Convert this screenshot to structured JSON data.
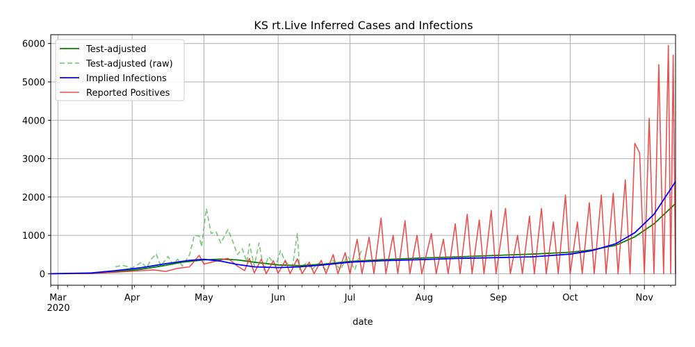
{
  "chart_data": {
    "type": "line",
    "title": "KS rt.Live Inferred Cases and Infections",
    "xlabel": "date",
    "ylabel": "",
    "x_ticks": [
      "Mar",
      "Apr",
      "May",
      "Jun",
      "Jul",
      "Aug",
      "Sep",
      "Oct",
      "Nov"
    ],
    "x_year_label": "2020",
    "y_ticks": [
      "0",
      "1000",
      "2000",
      "3000",
      "4000",
      "5000",
      "6000"
    ],
    "ylim": [
      -300,
      6230
    ],
    "xlim": [
      "2020-02-27",
      "2020-11-14"
    ],
    "grid": true,
    "legend_position": "upper-left",
    "colors": {
      "test_adjusted": "#008000",
      "test_adjusted_raw": "#5cb85c",
      "implied_infections": "#0000ff",
      "reported_positives": "#e8312f"
    },
    "series": [
      {
        "name": "Test-adjusted",
        "key": "test_adjusted",
        "style": "solid",
        "points": [
          [
            "2020-02-27",
            0
          ],
          [
            "2020-03-15",
            10
          ],
          [
            "2020-03-25",
            50
          ],
          [
            "2020-04-05",
            120
          ],
          [
            "2020-04-15",
            220
          ],
          [
            "2020-04-22",
            300
          ],
          [
            "2020-05-01",
            360
          ],
          [
            "2020-05-08",
            380
          ],
          [
            "2020-05-15",
            360
          ],
          [
            "2020-05-22",
            300
          ],
          [
            "2020-06-01",
            230
          ],
          [
            "2020-06-10",
            210
          ],
          [
            "2020-06-20",
            250
          ],
          [
            "2020-07-01",
            320
          ],
          [
            "2020-07-15",
            370
          ],
          [
            "2020-08-01",
            410
          ],
          [
            "2020-08-15",
            440
          ],
          [
            "2020-09-01",
            480
          ],
          [
            "2020-09-15",
            510
          ],
          [
            "2020-10-01",
            560
          ],
          [
            "2020-10-10",
            620
          ],
          [
            "2020-10-20",
            740
          ],
          [
            "2020-10-28",
            960
          ],
          [
            "2020-11-05",
            1300
          ],
          [
            "2020-11-14",
            1830
          ]
        ]
      },
      {
        "name": "Test-adjusted (raw)",
        "key": "test_adjusted_raw",
        "style": "dashed",
        "points": [
          [
            "2020-03-25",
            180
          ],
          [
            "2020-03-28",
            220
          ],
          [
            "2020-04-01",
            150
          ],
          [
            "2020-04-05",
            300
          ],
          [
            "2020-04-07",
            150
          ],
          [
            "2020-04-09",
            380
          ],
          [
            "2020-04-11",
            520
          ],
          [
            "2020-04-13",
            200
          ],
          [
            "2020-04-16",
            450
          ],
          [
            "2020-04-18",
            250
          ],
          [
            "2020-04-20",
            380
          ],
          [
            "2020-04-22",
            200
          ],
          [
            "2020-04-25",
            500
          ],
          [
            "2020-04-27",
            1000
          ],
          [
            "2020-04-29",
            980
          ],
          [
            "2020-04-30",
            700
          ],
          [
            "2020-05-02",
            1700
          ],
          [
            "2020-05-04",
            1050
          ],
          [
            "2020-05-06",
            1100
          ],
          [
            "2020-05-08",
            800
          ],
          [
            "2020-05-11",
            1150
          ],
          [
            "2020-05-13",
            850
          ],
          [
            "2020-05-15",
            500
          ],
          [
            "2020-05-17",
            650
          ],
          [
            "2020-05-19",
            300
          ],
          [
            "2020-05-20",
            780
          ],
          [
            "2020-05-22",
            200
          ],
          [
            "2020-05-24",
            800
          ],
          [
            "2020-05-26",
            100
          ],
          [
            "2020-05-28",
            450
          ],
          [
            "2020-05-31",
            200
          ],
          [
            "2020-06-02",
            600
          ],
          [
            "2020-06-04",
            300
          ],
          [
            "2020-06-07",
            200
          ],
          [
            "2020-06-09",
            1050
          ],
          [
            "2020-06-10",
            100
          ],
          [
            "2020-06-13",
            300
          ],
          [
            "2020-06-15",
            100
          ],
          [
            "2020-06-18",
            280
          ],
          [
            "2020-06-21",
            100
          ],
          [
            "2020-06-24",
            350
          ],
          [
            "2020-06-27",
            100
          ],
          [
            "2020-06-30",
            480
          ],
          [
            "2020-07-03",
            100
          ],
          [
            "2020-07-06",
            650
          ]
        ]
      },
      {
        "name": "Implied Infections",
        "key": "implied_infections",
        "style": "solid",
        "points": [
          [
            "2020-02-27",
            0
          ],
          [
            "2020-03-15",
            20
          ],
          [
            "2020-03-25",
            80
          ],
          [
            "2020-04-05",
            160
          ],
          [
            "2020-04-15",
            260
          ],
          [
            "2020-04-25",
            350
          ],
          [
            "2020-05-01",
            375
          ],
          [
            "2020-05-08",
            330
          ],
          [
            "2020-05-15",
            240
          ],
          [
            "2020-05-22",
            180
          ],
          [
            "2020-06-01",
            160
          ],
          [
            "2020-06-10",
            180
          ],
          [
            "2020-06-20",
            230
          ],
          [
            "2020-07-01",
            300
          ],
          [
            "2020-07-15",
            340
          ],
          [
            "2020-08-01",
            370
          ],
          [
            "2020-08-15",
            400
          ],
          [
            "2020-09-01",
            420
          ],
          [
            "2020-09-15",
            440
          ],
          [
            "2020-10-01",
            510
          ],
          [
            "2020-10-10",
            600
          ],
          [
            "2020-10-20",
            780
          ],
          [
            "2020-10-28",
            1070
          ],
          [
            "2020-11-05",
            1550
          ],
          [
            "2020-11-14",
            2400
          ]
        ]
      },
      {
        "name": "Reported Positives",
        "key": "reported_positives",
        "style": "solid",
        "points": [
          [
            "2020-02-27",
            0
          ],
          [
            "2020-03-15",
            5
          ],
          [
            "2020-03-25",
            40
          ],
          [
            "2020-04-05",
            80
          ],
          [
            "2020-04-10",
            100
          ],
          [
            "2020-04-15",
            60
          ],
          [
            "2020-04-20",
            140
          ],
          [
            "2020-04-25",
            180
          ],
          [
            "2020-04-29",
            480
          ],
          [
            "2020-05-01",
            250
          ],
          [
            "2020-05-06",
            330
          ],
          [
            "2020-05-11",
            400
          ],
          [
            "2020-05-15",
            200
          ],
          [
            "2020-05-18",
            80
          ],
          [
            "2020-05-20",
            400
          ],
          [
            "2020-05-22",
            20
          ],
          [
            "2020-05-25",
            380
          ],
          [
            "2020-05-27",
            0
          ],
          [
            "2020-05-30",
            340
          ],
          [
            "2020-06-01",
            10
          ],
          [
            "2020-06-04",
            350
          ],
          [
            "2020-06-06",
            0
          ],
          [
            "2020-06-09",
            390
          ],
          [
            "2020-06-11",
            0
          ],
          [
            "2020-06-14",
            300
          ],
          [
            "2020-06-16",
            0
          ],
          [
            "2020-06-19",
            350
          ],
          [
            "2020-06-21",
            0
          ],
          [
            "2020-06-24",
            500
          ],
          [
            "2020-06-26",
            0
          ],
          [
            "2020-06-29",
            550
          ],
          [
            "2020-07-01",
            0
          ],
          [
            "2020-07-04",
            900
          ],
          [
            "2020-07-06",
            0
          ],
          [
            "2020-07-09",
            950
          ],
          [
            "2020-07-11",
            0
          ],
          [
            "2020-07-14",
            1450
          ],
          [
            "2020-07-16",
            0
          ],
          [
            "2020-07-19",
            1000
          ],
          [
            "2020-07-21",
            0
          ],
          [
            "2020-07-24",
            1380
          ],
          [
            "2020-07-26",
            0
          ],
          [
            "2020-07-29",
            1000
          ],
          [
            "2020-07-31",
            0
          ],
          [
            "2020-08-04",
            1050
          ],
          [
            "2020-08-06",
            0
          ],
          [
            "2020-08-09",
            900
          ],
          [
            "2020-08-11",
            0
          ],
          [
            "2020-08-14",
            1300
          ],
          [
            "2020-08-16",
            0
          ],
          [
            "2020-08-19",
            1550
          ],
          [
            "2020-08-21",
            0
          ],
          [
            "2020-08-24",
            1400
          ],
          [
            "2020-08-26",
            0
          ],
          [
            "2020-08-29",
            1650
          ],
          [
            "2020-08-31",
            0
          ],
          [
            "2020-09-04",
            1700
          ],
          [
            "2020-09-06",
            0
          ],
          [
            "2020-09-09",
            1000
          ],
          [
            "2020-09-11",
            0
          ],
          [
            "2020-09-14",
            1500
          ],
          [
            "2020-09-16",
            0
          ],
          [
            "2020-09-19",
            1700
          ],
          [
            "2020-09-21",
            0
          ],
          [
            "2020-09-24",
            1350
          ],
          [
            "2020-09-26",
            0
          ],
          [
            "2020-09-29",
            2050
          ],
          [
            "2020-10-01",
            0
          ],
          [
            "2020-10-04",
            1350
          ],
          [
            "2020-10-06",
            0
          ],
          [
            "2020-10-09",
            1850
          ],
          [
            "2020-10-11",
            0
          ],
          [
            "2020-10-14",
            2050
          ],
          [
            "2020-10-16",
            0
          ],
          [
            "2020-10-19",
            2100
          ],
          [
            "2020-10-21",
            0
          ],
          [
            "2020-10-24",
            2450
          ],
          [
            "2020-10-26",
            0
          ],
          [
            "2020-10-28",
            3400
          ],
          [
            "2020-10-30",
            3150
          ],
          [
            "2020-11-01",
            0
          ],
          [
            "2020-11-03",
            4050
          ],
          [
            "2020-11-05",
            0
          ],
          [
            "2020-11-07",
            5450
          ],
          [
            "2020-11-09",
            0
          ],
          [
            "2020-11-11",
            5950
          ],
          [
            "2020-11-12",
            0
          ],
          [
            "2020-11-13",
            5700
          ],
          [
            "2020-11-14",
            0
          ]
        ]
      }
    ]
  }
}
